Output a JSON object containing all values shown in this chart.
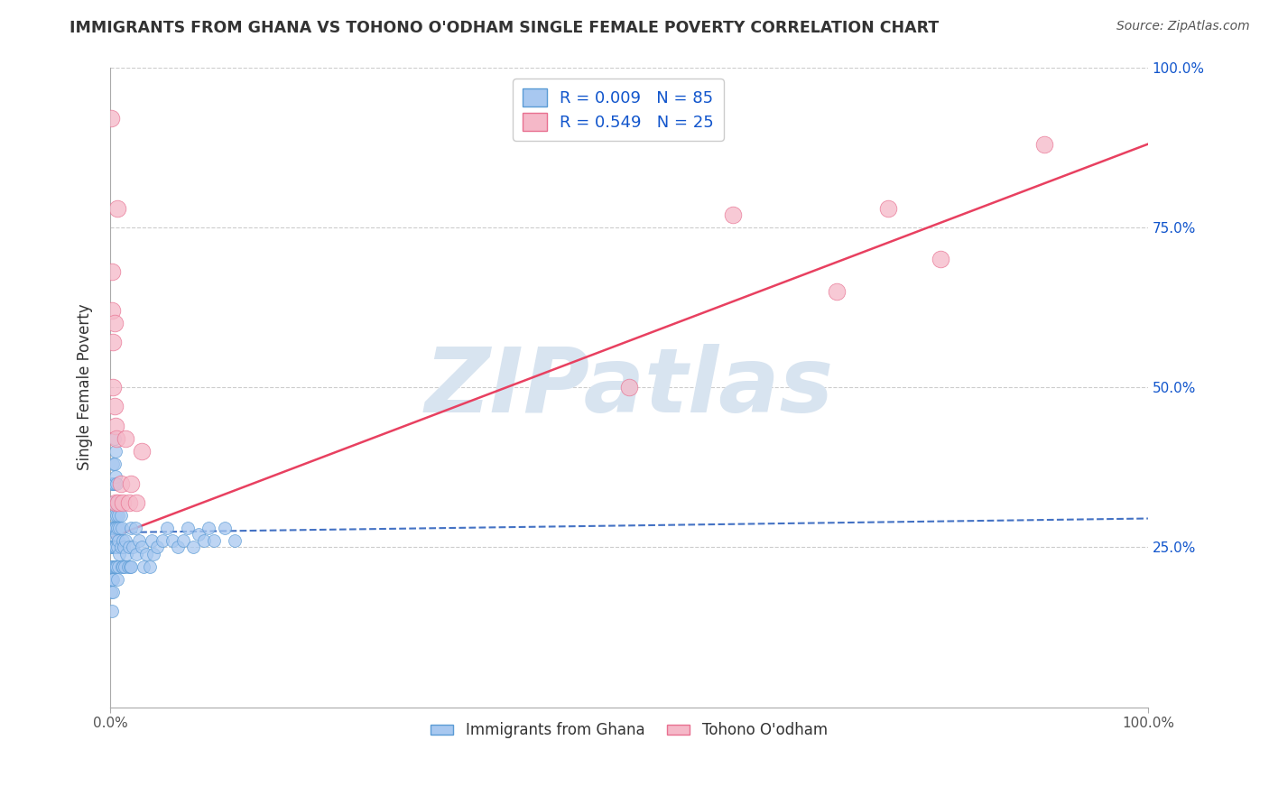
{
  "title": "IMMIGRANTS FROM GHANA VS TOHONO O'ODHAM SINGLE FEMALE POVERTY CORRELATION CHART",
  "source": "Source: ZipAtlas.com",
  "ylabel": "Single Female Poverty",
  "r_blue": 0.009,
  "n_blue": 85,
  "r_pink": 0.549,
  "n_pink": 25,
  "blue_color": "#A8C8F0",
  "blue_edge": "#5A9BD5",
  "pink_color": "#F5B8C8",
  "pink_edge": "#E87090",
  "trendline_blue_color": "#4472C4",
  "trendline_pink_color": "#E84060",
  "watermark_color": "#D8E4F0",
  "watermark_text": "ZIPatlas",
  "background_color": "#FFFFFF",
  "grid_color": "#CCCCCC",
  "xlim": [
    0,
    1
  ],
  "ylim": [
    0,
    1
  ],
  "blue_x": [
    0.001,
    0.001,
    0.001,
    0.001,
    0.001,
    0.002,
    0.002,
    0.002,
    0.002,
    0.002,
    0.002,
    0.002,
    0.003,
    0.003,
    0.003,
    0.003,
    0.003,
    0.003,
    0.003,
    0.003,
    0.004,
    0.004,
    0.004,
    0.004,
    0.004,
    0.004,
    0.004,
    0.005,
    0.005,
    0.005,
    0.005,
    0.005,
    0.005,
    0.006,
    0.006,
    0.006,
    0.006,
    0.007,
    0.007,
    0.007,
    0.007,
    0.008,
    0.008,
    0.008,
    0.009,
    0.009,
    0.01,
    0.01,
    0.011,
    0.011,
    0.012,
    0.012,
    0.013,
    0.014,
    0.015,
    0.016,
    0.017,
    0.018,
    0.019,
    0.02,
    0.02,
    0.022,
    0.024,
    0.025,
    0.028,
    0.03,
    0.032,
    0.035,
    0.038,
    0.04,
    0.042,
    0.045,
    0.05,
    0.055,
    0.06,
    0.065,
    0.07,
    0.075,
    0.08,
    0.085,
    0.09,
    0.095,
    0.1,
    0.11,
    0.12
  ],
  "blue_y": [
    0.27,
    0.25,
    0.22,
    0.2,
    0.18,
    0.35,
    0.32,
    0.28,
    0.25,
    0.22,
    0.2,
    0.15,
    0.38,
    0.35,
    0.32,
    0.28,
    0.25,
    0.22,
    0.2,
    0.18,
    0.42,
    0.38,
    0.35,
    0.3,
    0.28,
    0.25,
    0.22,
    0.4,
    0.36,
    0.32,
    0.28,
    0.25,
    0.22,
    0.35,
    0.3,
    0.27,
    0.22,
    0.32,
    0.28,
    0.25,
    0.2,
    0.3,
    0.26,
    0.22,
    0.28,
    0.24,
    0.3,
    0.25,
    0.28,
    0.22,
    0.26,
    0.22,
    0.25,
    0.22,
    0.26,
    0.24,
    0.22,
    0.25,
    0.22,
    0.28,
    0.22,
    0.25,
    0.28,
    0.24,
    0.26,
    0.25,
    0.22,
    0.24,
    0.22,
    0.26,
    0.24,
    0.25,
    0.26,
    0.28,
    0.26,
    0.25,
    0.26,
    0.28,
    0.25,
    0.27,
    0.26,
    0.28,
    0.26,
    0.28,
    0.26
  ],
  "pink_x": [
    0.001,
    0.002,
    0.002,
    0.003,
    0.003,
    0.004,
    0.004,
    0.005,
    0.005,
    0.006,
    0.007,
    0.008,
    0.01,
    0.012,
    0.015,
    0.018,
    0.02,
    0.025,
    0.03,
    0.5,
    0.6,
    0.7,
    0.75,
    0.8,
    0.9
  ],
  "pink_y": [
    0.92,
    0.68,
    0.62,
    0.57,
    0.5,
    0.47,
    0.6,
    0.44,
    0.32,
    0.42,
    0.78,
    0.32,
    0.35,
    0.32,
    0.42,
    0.32,
    0.35,
    0.32,
    0.4,
    0.5,
    0.77,
    0.65,
    0.78,
    0.7,
    0.88
  ],
  "blue_trend_x": [
    0.0,
    1.0
  ],
  "blue_trend_y": [
    0.273,
    0.295
  ],
  "pink_trend_x": [
    0.0,
    1.0
  ],
  "pink_trend_y": [
    0.265,
    0.88
  ],
  "yticks": [
    0.0,
    0.25,
    0.5,
    0.75,
    1.0
  ],
  "ytick_right_labels": [
    "",
    "25.0%",
    "50.0%",
    "75.0%",
    "100.0%"
  ],
  "xticks": [
    0.0,
    1.0
  ],
  "xtick_labels": [
    "0.0%",
    "100.0%"
  ],
  "legend_blue_label": "Immigrants from Ghana",
  "legend_pink_label": "Tohono O'odham",
  "title_color": "#333333",
  "source_color": "#555555",
  "axis_label_color": "#333333",
  "tick_color": "#555555",
  "r_label_color": "#1155CC"
}
